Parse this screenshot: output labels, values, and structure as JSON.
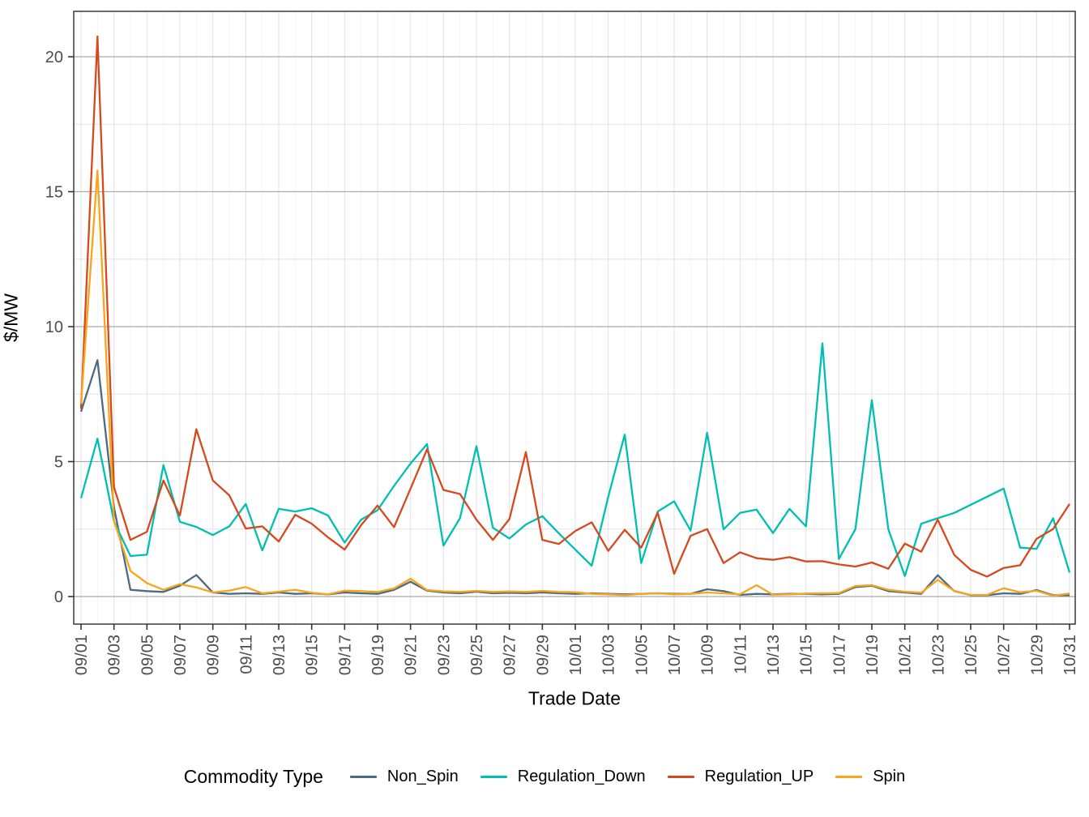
{
  "figure": {
    "background": "#FFFFFF"
  },
  "axes": {
    "y_title": "$/MW",
    "x_title": "Trade Date",
    "y_tick_labels": [
      "0",
      "5",
      "10",
      "15",
      "20"
    ],
    "tick_label_color": "#4D4D4D"
  },
  "legend": {
    "title": "Commodity Type",
    "items": [
      {
        "label": "Non_Spin",
        "color": "#4A6B80"
      },
      {
        "label": "Regulation_Down",
        "color": "#00BFB2"
      },
      {
        "label": "Regulation_UP",
        "color": "#D5491D"
      },
      {
        "label": "Spin",
        "color": "#F9A41B"
      }
    ]
  },
  "chart_data": {
    "type": "line",
    "title": "",
    "xlabel": "Trade Date",
    "ylabel": "$/MW",
    "ylim": [
      -1.05,
      21.7
    ],
    "y_major_ticks": [
      0,
      5,
      10,
      15,
      20
    ],
    "y_minor_ticks": [
      2.5,
      7.5,
      12.5,
      17.5
    ],
    "grid": "major+minor",
    "legend_position": "bottom",
    "x_tick_every_days": 2,
    "x_tick_labels": [
      "09/01",
      "09/03",
      "09/05",
      "09/07",
      "09/09",
      "09/11",
      "09/13",
      "09/15",
      "09/17",
      "09/19",
      "09/21",
      "09/23",
      "09/25",
      "09/27",
      "09/29",
      "10/01",
      "10/03",
      "10/05",
      "10/07",
      "10/09",
      "10/11",
      "10/13",
      "10/15",
      "10/17",
      "10/19",
      "10/21",
      "10/23",
      "10/25",
      "10/27",
      "10/29",
      "10/31"
    ],
    "x": [
      "09/01",
      "09/02",
      "09/03",
      "09/04",
      "09/05",
      "09/06",
      "09/07",
      "09/08",
      "09/09",
      "09/10",
      "09/11",
      "09/12",
      "09/13",
      "09/14",
      "09/15",
      "09/16",
      "09/17",
      "09/18",
      "09/19",
      "09/20",
      "09/21",
      "09/22",
      "09/23",
      "09/24",
      "09/25",
      "09/26",
      "09/27",
      "09/28",
      "09/29",
      "09/30",
      "10/01",
      "10/02",
      "10/03",
      "10/04",
      "10/05",
      "10/06",
      "10/07",
      "10/08",
      "10/09",
      "10/10",
      "10/11",
      "10/12",
      "10/13",
      "10/14",
      "10/15",
      "10/16",
      "10/17",
      "10/18",
      "10/19",
      "10/20",
      "10/21",
      "10/22",
      "10/23",
      "10/24",
      "10/25",
      "10/26",
      "10/27",
      "10/28",
      "10/29",
      "10/30",
      "10/31"
    ],
    "series": [
      {
        "name": "Non_Spin",
        "color": "#4A6B80",
        "values": [
          6.85,
          8.76,
          3.3,
          0.25,
          0.2,
          0.17,
          0.4,
          0.8,
          0.15,
          0.1,
          0.12,
          0.1,
          0.15,
          0.1,
          0.12,
          0.08,
          0.15,
          0.12,
          0.1,
          0.25,
          0.55,
          0.22,
          0.15,
          0.12,
          0.18,
          0.12,
          0.14,
          0.12,
          0.15,
          0.12,
          0.1,
          0.12,
          0.1,
          0.08,
          0.1,
          0.12,
          0.1,
          0.1,
          0.27,
          0.2,
          0.06,
          0.1,
          0.08,
          0.1,
          0.1,
          0.08,
          0.1,
          0.35,
          0.4,
          0.2,
          0.15,
          0.1,
          0.79,
          0.2,
          0.05,
          0.05,
          0.12,
          0.1,
          0.24,
          0.05,
          0.05
        ]
      },
      {
        "name": "Regulation_Down",
        "color": "#00BFB2",
        "values": [
          3.65,
          5.85,
          2.78,
          1.5,
          1.55,
          4.87,
          2.77,
          2.58,
          2.28,
          2.6,
          3.43,
          1.71,
          3.25,
          3.15,
          3.27,
          3.0,
          2.0,
          2.85,
          3.2,
          4.1,
          4.93,
          5.65,
          1.89,
          2.9,
          5.57,
          2.55,
          2.15,
          2.67,
          2.98,
          2.34,
          1.74,
          1.14,
          3.7,
          6.0,
          1.24,
          3.15,
          3.53,
          2.44,
          6.07,
          2.49,
          3.1,
          3.22,
          2.35,
          3.25,
          2.6,
          9.38,
          1.39,
          2.5,
          7.28,
          2.5,
          0.76,
          2.7,
          2.9,
          3.1,
          3.4,
          3.7,
          4.0,
          1.81,
          1.77,
          2.9,
          0.89
        ]
      },
      {
        "name": "Regulation_UP",
        "color": "#D5491D",
        "values": [
          6.95,
          20.75,
          4.05,
          2.1,
          2.4,
          4.3,
          3.0,
          6.2,
          4.3,
          3.75,
          2.52,
          2.6,
          2.04,
          3.03,
          2.7,
          2.19,
          1.74,
          2.65,
          3.37,
          2.57,
          4.0,
          5.45,
          3.95,
          3.8,
          2.85,
          2.1,
          2.87,
          5.35,
          2.1,
          1.95,
          2.43,
          2.75,
          1.69,
          2.47,
          1.81,
          3.1,
          0.84,
          2.25,
          2.5,
          1.24,
          1.64,
          1.42,
          1.36,
          1.46,
          1.3,
          1.31,
          1.19,
          1.11,
          1.26,
          1.03,
          1.96,
          1.66,
          2.85,
          1.54,
          0.99,
          0.74,
          1.06,
          1.16,
          2.14,
          2.5,
          3.43
        ]
      },
      {
        "name": "Spin",
        "color": "#F9A41B",
        "values": [
          7.15,
          15.78,
          2.8,
          0.95,
          0.5,
          0.25,
          0.46,
          0.34,
          0.15,
          0.22,
          0.35,
          0.12,
          0.18,
          0.25,
          0.14,
          0.08,
          0.22,
          0.2,
          0.17,
          0.3,
          0.66,
          0.24,
          0.19,
          0.17,
          0.21,
          0.17,
          0.19,
          0.17,
          0.21,
          0.17,
          0.16,
          0.1,
          0.08,
          0.05,
          0.1,
          0.12,
          0.08,
          0.1,
          0.15,
          0.12,
          0.08,
          0.42,
          0.07,
          0.08,
          0.11,
          0.12,
          0.13,
          0.39,
          0.42,
          0.25,
          0.18,
          0.14,
          0.62,
          0.21,
          0.06,
          0.06,
          0.31,
          0.16,
          0.21,
          0.03,
          0.11
        ]
      }
    ],
    "style": {
      "panel_border": "#2B2B2B",
      "grid_y_major": "#ABABAB",
      "grid_y_minor": "#E4E4E4",
      "grid_x_major": "#E4E4E4",
      "grid_x_minor": "#F2F2F2",
      "tick_color": "#333333",
      "line_width": 2.3
    }
  }
}
